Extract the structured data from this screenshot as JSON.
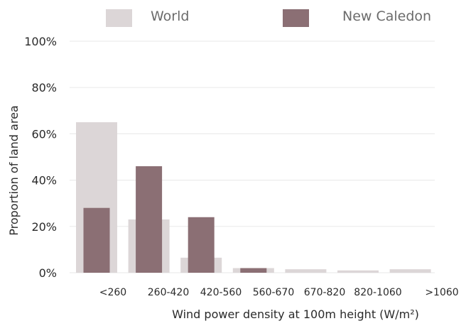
{
  "chart_data": {
    "type": "bar",
    "categories": [
      "<260",
      "260-420",
      "420-560",
      "560-670",
      "670-820",
      "820-1060",
      ">1060"
    ],
    "series": [
      {
        "name": "World",
        "values": [
          65,
          23,
          6.5,
          2,
          1.5,
          1,
          1.5
        ],
        "color": "#dcd6d7"
      },
      {
        "name": "New Caledon",
        "values": [
          28,
          46,
          24,
          2,
          0,
          0,
          0
        ],
        "color": "#8b6f74"
      }
    ],
    "y_ticks": [
      "0%",
      "20%",
      "40%",
      "60%",
      "80%",
      "100%"
    ],
    "ylim": [
      0,
      100
    ],
    "xlabel": "Wind power density at 100m height (W/m²)",
    "ylabel": "Proportion of land area",
    "grid": true,
    "legend": "top"
  }
}
